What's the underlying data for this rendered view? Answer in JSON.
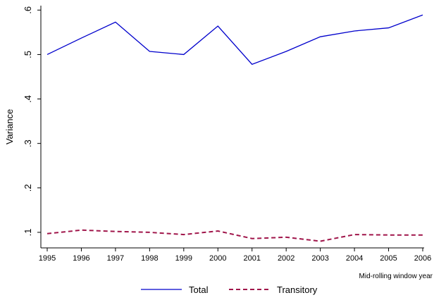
{
  "chart_data": {
    "type": "line",
    "x": [
      1995,
      1996,
      1997,
      1998,
      1999,
      2000,
      2001,
      2002,
      2003,
      2004,
      2005,
      2006
    ],
    "series": [
      {
        "name": "Total",
        "color": "#0000cc",
        "dash": "solid",
        "values": [
          0.5,
          0.537,
          0.573,
          0.507,
          0.5,
          0.564,
          0.478,
          0.507,
          0.54,
          0.553,
          0.56,
          0.589
        ]
      },
      {
        "name": "Transitory",
        "color": "#a0154a",
        "dash": "dashed",
        "values": [
          0.097,
          0.105,
          0.102,
          0.1,
          0.095,
          0.103,
          0.086,
          0.089,
          0.08,
          0.095,
          0.094,
          0.094
        ]
      }
    ],
    "xlabel": "Mid-rolling window year",
    "ylabel": "Variance",
    "xlim": [
      1995,
      2006
    ],
    "xticks": [
      1995,
      1996,
      1997,
      1998,
      1999,
      2000,
      2001,
      2002,
      2003,
      2004,
      2005,
      2006
    ],
    "ylim": [
      0.065,
      0.61
    ],
    "yticks": [
      {
        "value": 0.1,
        "label": ".1"
      },
      {
        "value": 0.2,
        "label": ".2"
      },
      {
        "value": 0.3,
        "label": ".3"
      },
      {
        "value": 0.4,
        "label": ".4"
      },
      {
        "value": 0.5,
        "label": ".5"
      },
      {
        "value": 0.6,
        "label": ".6"
      }
    ],
    "legend": "bottom"
  }
}
